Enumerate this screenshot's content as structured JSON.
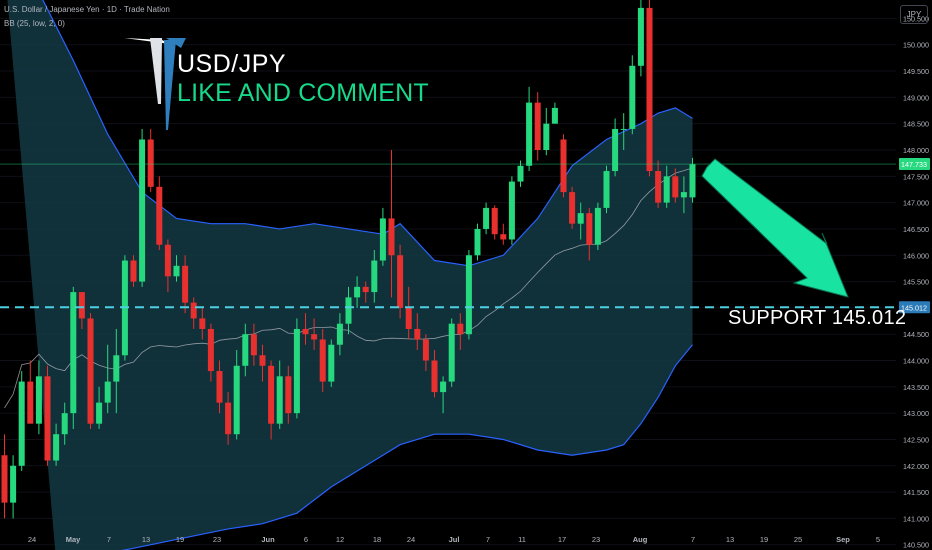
{
  "header": {
    "symbol_line": "U.S. Dollar / Japanese Yen · 1D · Trade Nation",
    "indicator_line": "BB (25, low, 2, 0)",
    "currency": "JPY"
  },
  "banner": {
    "pair": "USD/JPY",
    "call_to_action": "LIKE AND COMMENT"
  },
  "annotation": {
    "support_label": "SUPPORT  145.012",
    "arrow_color": "#19e3a0"
  },
  "colors": {
    "up": "#26d97f",
    "down": "#e8312f",
    "band_fill": "#133a44",
    "band_line": "#2962ff",
    "basis_line": "#b2b5be",
    "support_line": "#4dd0e1",
    "last_price_badge": "#26d97f",
    "support_badge": "#2b7bb9"
  },
  "chart_data": {
    "type": "candlestick",
    "y_axis": {
      "range": [
        140.4,
        150.85
      ],
      "ticks": [
        "140.500",
        "141.000",
        "141.500",
        "142.000",
        "142.500",
        "143.000",
        "143.500",
        "144.000",
        "144.500",
        "145.000",
        "145.500",
        "146.000",
        "146.500",
        "147.000",
        "147.500",
        "148.000",
        "148.500",
        "149.000",
        "149.500",
        "150.000",
        "150.500"
      ]
    },
    "x_axis": {
      "labels": [
        "24",
        "May",
        "7",
        "13",
        "19",
        "23",
        "Jun",
        "6",
        "12",
        "18",
        "24",
        "Jul",
        "7",
        "11",
        "17",
        "23",
        "Aug",
        "7",
        "13",
        "19",
        "25",
        "Sep",
        "5"
      ]
    },
    "price_labels": {
      "last": "147.733",
      "support": "145.012"
    },
    "support_level": 145.012,
    "last_price": 147.733,
    "candles": [
      {
        "o": 142.2,
        "h": 142.6,
        "l": 141.0,
        "c": 141.3
      },
      {
        "o": 141.3,
        "h": 142.2,
        "l": 141.0,
        "c": 142.0
      },
      {
        "o": 142.0,
        "h": 143.8,
        "l": 141.9,
        "c": 143.6
      },
      {
        "o": 143.6,
        "h": 144.0,
        "l": 142.9,
        "c": 142.8
      },
      {
        "o": 142.8,
        "h": 144.0,
        "l": 142.6,
        "c": 143.7
      },
      {
        "o": 143.7,
        "h": 143.9,
        "l": 142.0,
        "c": 142.1
      },
      {
        "o": 142.1,
        "h": 142.8,
        "l": 142.0,
        "c": 142.6
      },
      {
        "o": 142.6,
        "h": 143.2,
        "l": 142.4,
        "c": 143.0
      },
      {
        "o": 143.0,
        "h": 145.4,
        "l": 142.7,
        "c": 145.3
      },
      {
        "o": 145.3,
        "h": 145.3,
        "l": 144.6,
        "c": 144.8
      },
      {
        "o": 144.8,
        "h": 144.9,
        "l": 142.7,
        "c": 142.8
      },
      {
        "o": 142.8,
        "h": 143.5,
        "l": 142.7,
        "c": 143.2
      },
      {
        "o": 143.2,
        "h": 144.3,
        "l": 143.0,
        "c": 143.6
      },
      {
        "o": 143.6,
        "h": 144.6,
        "l": 143.0,
        "c": 144.1
      },
      {
        "o": 144.1,
        "h": 146.0,
        "l": 144.0,
        "c": 145.9
      },
      {
        "o": 145.9,
        "h": 146.0,
        "l": 145.4,
        "c": 145.5
      },
      {
        "o": 145.5,
        "h": 148.4,
        "l": 145.4,
        "c": 148.2
      },
      {
        "o": 148.2,
        "h": 148.4,
        "l": 147.2,
        "c": 147.3
      },
      {
        "o": 147.3,
        "h": 147.5,
        "l": 146.1,
        "c": 146.2
      },
      {
        "o": 146.2,
        "h": 146.3,
        "l": 145.3,
        "c": 145.6
      },
      {
        "o": 145.6,
        "h": 146.0,
        "l": 145.5,
        "c": 145.8
      },
      {
        "o": 145.8,
        "h": 146.0,
        "l": 144.9,
        "c": 145.1
      },
      {
        "o": 145.1,
        "h": 145.2,
        "l": 144.6,
        "c": 144.8
      },
      {
        "o": 144.8,
        "h": 145.0,
        "l": 144.4,
        "c": 144.6
      },
      {
        "o": 144.6,
        "h": 144.7,
        "l": 143.6,
        "c": 143.8
      },
      {
        "o": 143.8,
        "h": 144.0,
        "l": 143.0,
        "c": 143.2
      },
      {
        "o": 143.2,
        "h": 143.4,
        "l": 142.4,
        "c": 142.6
      },
      {
        "o": 142.6,
        "h": 144.2,
        "l": 142.5,
        "c": 143.9
      },
      {
        "o": 143.9,
        "h": 144.7,
        "l": 143.7,
        "c": 144.5
      },
      {
        "o": 144.5,
        "h": 144.7,
        "l": 143.9,
        "c": 144.1
      },
      {
        "o": 144.1,
        "h": 144.3,
        "l": 143.6,
        "c": 143.9
      },
      {
        "o": 143.9,
        "h": 144.0,
        "l": 142.5,
        "c": 142.8
      },
      {
        "o": 142.8,
        "h": 144.0,
        "l": 142.7,
        "c": 143.7
      },
      {
        "o": 143.7,
        "h": 143.9,
        "l": 142.8,
        "c": 143.0
      },
      {
        "o": 143.0,
        "h": 144.8,
        "l": 142.9,
        "c": 144.6
      },
      {
        "o": 144.6,
        "h": 144.9,
        "l": 144.3,
        "c": 144.5
      },
      {
        "o": 144.5,
        "h": 144.8,
        "l": 144.2,
        "c": 144.4
      },
      {
        "o": 144.4,
        "h": 144.6,
        "l": 143.4,
        "c": 143.6
      },
      {
        "o": 143.6,
        "h": 144.4,
        "l": 143.5,
        "c": 144.3
      },
      {
        "o": 144.3,
        "h": 144.9,
        "l": 144.1,
        "c": 144.7
      },
      {
        "o": 144.7,
        "h": 145.4,
        "l": 144.5,
        "c": 145.2
      },
      {
        "o": 145.2,
        "h": 145.6,
        "l": 145.0,
        "c": 145.4
      },
      {
        "o": 145.4,
        "h": 145.5,
        "l": 145.1,
        "c": 145.3
      },
      {
        "o": 145.3,
        "h": 146.1,
        "l": 145.1,
        "c": 145.9
      },
      {
        "o": 145.9,
        "h": 146.9,
        "l": 145.8,
        "c": 146.7
      },
      {
        "o": 146.7,
        "h": 148.0,
        "l": 145.2,
        "c": 146.0
      },
      {
        "o": 146.0,
        "h": 146.2,
        "l": 144.8,
        "c": 145.0
      },
      {
        "o": 145.0,
        "h": 145.4,
        "l": 144.4,
        "c": 144.6
      },
      {
        "o": 144.6,
        "h": 144.9,
        "l": 144.2,
        "c": 144.4
      },
      {
        "o": 144.4,
        "h": 144.5,
        "l": 143.8,
        "c": 144.0
      },
      {
        "o": 144.0,
        "h": 144.2,
        "l": 143.3,
        "c": 143.4
      },
      {
        "o": 143.4,
        "h": 143.7,
        "l": 143.0,
        "c": 143.6
      },
      {
        "o": 143.6,
        "h": 144.8,
        "l": 143.5,
        "c": 144.7
      },
      {
        "o": 144.7,
        "h": 144.9,
        "l": 144.2,
        "c": 144.5
      },
      {
        "o": 144.5,
        "h": 146.1,
        "l": 144.4,
        "c": 146.0
      },
      {
        "o": 146.0,
        "h": 146.6,
        "l": 145.9,
        "c": 146.5
      },
      {
        "o": 146.5,
        "h": 147.0,
        "l": 146.4,
        "c": 146.9
      },
      {
        "o": 146.9,
        "h": 146.95,
        "l": 146.3,
        "c": 146.4
      },
      {
        "o": 146.4,
        "h": 146.6,
        "l": 146.2,
        "c": 146.3
      },
      {
        "o": 146.3,
        "h": 147.5,
        "l": 146.2,
        "c": 147.4
      },
      {
        "o": 147.4,
        "h": 147.8,
        "l": 147.3,
        "c": 147.7
      },
      {
        "o": 147.7,
        "h": 149.2,
        "l": 147.6,
        "c": 148.9
      },
      {
        "o": 148.9,
        "h": 149.1,
        "l": 147.8,
        "c": 148.0
      },
      {
        "o": 148.0,
        "h": 148.8,
        "l": 147.9,
        "c": 148.5
      },
      {
        "o": 148.5,
        "h": 148.9,
        "l": 148.5,
        "c": 148.8
      },
      {
        "o": 148.2,
        "h": 148.3,
        "l": 147.1,
        "c": 147.2
      },
      {
        "o": 147.2,
        "h": 147.3,
        "l": 146.5,
        "c": 146.6
      },
      {
        "o": 146.6,
        "h": 147.0,
        "l": 146.3,
        "c": 146.8
      },
      {
        "o": 146.8,
        "h": 146.9,
        "l": 145.9,
        "c": 146.2
      },
      {
        "o": 146.2,
        "h": 147.0,
        "l": 146.1,
        "c": 146.9
      },
      {
        "o": 146.9,
        "h": 147.7,
        "l": 146.8,
        "c": 147.6
      },
      {
        "o": 147.6,
        "h": 148.6,
        "l": 147.5,
        "c": 148.4
      },
      {
        "o": 148.4,
        "h": 148.7,
        "l": 148.0,
        "c": 148.4
      },
      {
        "o": 148.4,
        "h": 149.8,
        "l": 148.3,
        "c": 149.6
      },
      {
        "o": 149.6,
        "h": 150.9,
        "l": 149.4,
        "c": 150.7
      },
      {
        "o": 150.7,
        "h": 150.85,
        "l": 147.5,
        "c": 147.6
      },
      {
        "o": 147.6,
        "h": 147.8,
        "l": 146.9,
        "c": 147.0
      },
      {
        "o": 147.0,
        "h": 147.7,
        "l": 146.9,
        "c": 147.5
      },
      {
        "o": 147.5,
        "h": 147.65,
        "l": 147.0,
        "c": 147.1
      },
      {
        "o": 147.1,
        "h": 147.5,
        "l": 146.8,
        "c": 147.2
      },
      {
        "o": 147.1,
        "h": 147.85,
        "l": 147.0,
        "c": 147.73
      }
    ],
    "bollinger": {
      "upper": [
        [
          0,
          151.5
        ],
        [
          4,
          151.0
        ],
        [
          8,
          149.7
        ],
        [
          12,
          148.3
        ],
        [
          16,
          147.2
        ],
        [
          20,
          146.7
        ],
        [
          24,
          146.6
        ],
        [
          28,
          146.6
        ],
        [
          32,
          146.5
        ],
        [
          36,
          146.6
        ],
        [
          40,
          146.5
        ],
        [
          44,
          146.4
        ],
        [
          46,
          146.6
        ],
        [
          50,
          145.9
        ],
        [
          54,
          145.8
        ],
        [
          58,
          146.0
        ],
        [
          62,
          146.7
        ],
        [
          66,
          147.7
        ],
        [
          70,
          148.2
        ],
        [
          74,
          148.5
        ],
        [
          76,
          148.7
        ],
        [
          78,
          148.8
        ],
        [
          79,
          148.7
        ],
        [
          80,
          148.6
        ]
      ],
      "lower": [
        [
          6,
          140.2
        ],
        [
          14,
          140.4
        ],
        [
          20,
          140.6
        ],
        [
          26,
          140.8
        ],
        [
          30,
          140.9
        ],
        [
          34,
          141.1
        ],
        [
          38,
          141.6
        ],
        [
          42,
          142.0
        ],
        [
          46,
          142.4
        ],
        [
          50,
          142.6
        ],
        [
          54,
          142.6
        ],
        [
          58,
          142.5
        ],
        [
          62,
          142.3
        ],
        [
          66,
          142.2
        ],
        [
          70,
          142.3
        ],
        [
          72,
          142.4
        ],
        [
          74,
          142.8
        ],
        [
          76,
          143.3
        ],
        [
          78,
          143.9
        ],
        [
          80,
          144.3
        ]
      ]
    }
  }
}
